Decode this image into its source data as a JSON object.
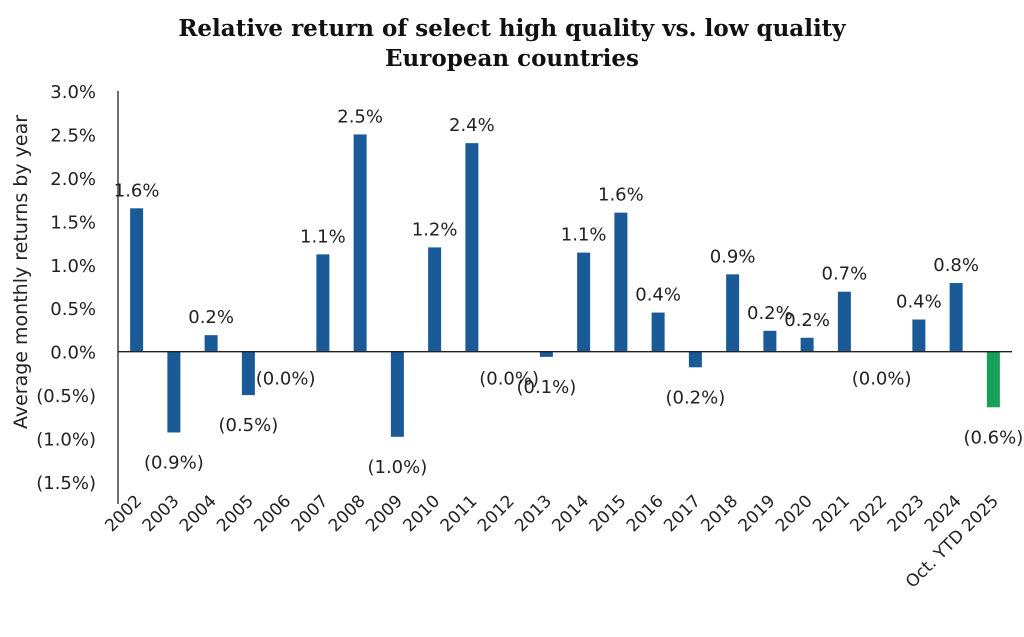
{
  "chart_data": {
    "type": "bar",
    "title": [
      "Relative return of select high quality vs. low quality",
      "European countries"
    ],
    "xlabel": "",
    "ylabel": "Average monthly returns by year",
    "ylim": [
      -1.5,
      3.0
    ],
    "yticks": [
      3.0,
      2.5,
      2.0,
      1.5,
      1.0,
      0.5,
      0.0,
      -0.5,
      -1.0,
      -1.5
    ],
    "ytick_labels": [
      "3.0%",
      "2.5%",
      "2.0%",
      "1.5%",
      "1.0%",
      "0.5%",
      "0.0%",
      "(0.5%)",
      "(1.0%)",
      "(1.5%)"
    ],
    "grid": false,
    "categories": [
      "2002",
      "2003",
      "2004",
      "2005",
      "2006",
      "2007",
      "2008",
      "2009",
      "2010",
      "2011",
      "2012",
      "2013",
      "2014",
      "2015",
      "2016",
      "2017",
      "2018",
      "2019",
      "2020",
      "2021",
      "2022",
      "2023",
      "2024",
      "Oct. YTD 2025"
    ],
    "values": [
      1.65,
      -0.93,
      0.19,
      -0.5,
      0.0,
      1.12,
      2.5,
      -0.98,
      1.2,
      2.4,
      0.0,
      -0.06,
      1.14,
      1.6,
      0.45,
      -0.18,
      0.89,
      0.24,
      0.16,
      0.69,
      0.0,
      0.37,
      0.79,
      -0.64
    ],
    "data_labels": [
      "1.6%",
      "(0.9%)",
      "0.2%",
      "(0.5%)",
      "(0.0%)",
      "1.1%",
      "2.5%",
      "(1.0%)",
      "1.2%",
      "2.4%",
      "(0.0%)",
      "(0.1%)",
      "1.1%",
      "1.6%",
      "0.4%",
      "(0.2%)",
      "0.9%",
      "0.2%",
      "0.2%",
      "0.7%",
      "(0.0%)",
      "0.4%",
      "0.8%",
      "(0.6%)"
    ],
    "colors": {
      "default": "#1a5a96",
      "highlight": "#16a05a"
    },
    "highlight_category": "Oct. YTD 2025"
  }
}
